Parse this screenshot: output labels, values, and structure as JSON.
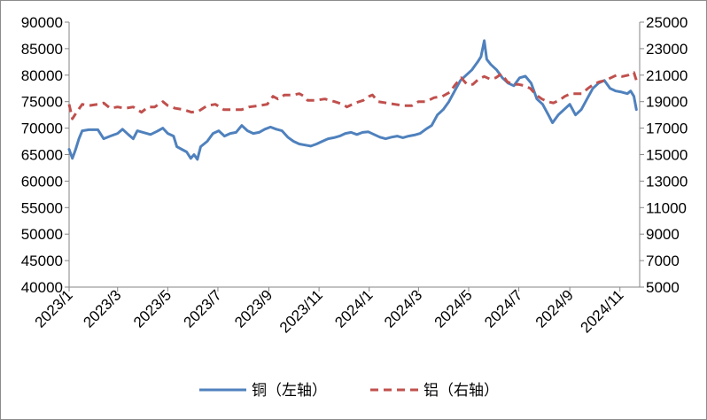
{
  "chart_data": {
    "type": "line",
    "y_left_lim": [
      40000,
      90000
    ],
    "y_left_ticks": [
      "90000",
      "85000",
      "80000",
      "75000",
      "70000",
      "65000",
      "60000",
      "55000",
      "50000",
      "45000",
      "40000"
    ],
    "y_right_lim": [
      5000,
      25000
    ],
    "y_right_ticks": [
      "25000",
      "23000",
      "21000",
      "19000",
      "17000",
      "15000",
      "13000",
      "11000",
      "9000",
      "7000",
      "5000"
    ],
    "x_ticks": [
      "2023/1",
      "2023/3",
      "2023/5",
      "2023/7",
      "2023/9",
      "2023/11",
      "2024/1",
      "2024/3",
      "2024/5",
      "2024/7",
      "2024/9",
      "2024/11"
    ],
    "x_lim": [
      "2023-01-01",
      "2024-11-25"
    ],
    "grid": "horizontal gridlines none",
    "legend_position": "bottom",
    "series": [
      {
        "name": "铜（左轴）",
        "axis": "left",
        "color": "#4f81bd",
        "style": "solid",
        "points": [
          [
            "2023-01-01",
            66000
          ],
          [
            "2023-01-05",
            64300
          ],
          [
            "2023-01-09",
            66000
          ],
          [
            "2023-01-13",
            68000
          ],
          [
            "2023-01-17",
            69500
          ],
          [
            "2023-01-25",
            69700
          ],
          [
            "2023-02-05",
            69700
          ],
          [
            "2023-02-12",
            68000
          ],
          [
            "2023-02-20",
            68500
          ],
          [
            "2023-03-01",
            69000
          ],
          [
            "2023-03-07",
            69800
          ],
          [
            "2023-03-14",
            68800
          ],
          [
            "2023-03-20",
            68000
          ],
          [
            "2023-03-25",
            69500
          ],
          [
            "2023-04-01",
            69200
          ],
          [
            "2023-04-10",
            68800
          ],
          [
            "2023-04-18",
            69400
          ],
          [
            "2023-04-25",
            70000
          ],
          [
            "2023-05-01",
            69000
          ],
          [
            "2023-05-08",
            68500
          ],
          [
            "2023-05-12",
            66500
          ],
          [
            "2023-05-18",
            66000
          ],
          [
            "2023-05-24",
            65500
          ],
          [
            "2023-05-29",
            64300
          ],
          [
            "2023-06-02",
            65000
          ],
          [
            "2023-06-06",
            64100
          ],
          [
            "2023-06-10",
            66500
          ],
          [
            "2023-06-18",
            67500
          ],
          [
            "2023-06-25",
            69000
          ],
          [
            "2023-07-02",
            69500
          ],
          [
            "2023-07-09",
            68500
          ],
          [
            "2023-07-16",
            69000
          ],
          [
            "2023-07-23",
            69200
          ],
          [
            "2023-07-30",
            70500
          ],
          [
            "2023-08-06",
            69500
          ],
          [
            "2023-08-13",
            69000
          ],
          [
            "2023-08-20",
            69200
          ],
          [
            "2023-08-27",
            69800
          ],
          [
            "2023-09-03",
            70200
          ],
          [
            "2023-09-10",
            69800
          ],
          [
            "2023-09-17",
            69500
          ],
          [
            "2023-09-24",
            68300
          ],
          [
            "2023-10-01",
            67500
          ],
          [
            "2023-10-08",
            67000
          ],
          [
            "2023-10-15",
            66800
          ],
          [
            "2023-10-22",
            66600
          ],
          [
            "2023-10-29",
            67000
          ],
          [
            "2023-11-05",
            67500
          ],
          [
            "2023-11-12",
            68000
          ],
          [
            "2023-11-19",
            68200
          ],
          [
            "2023-11-26",
            68500
          ],
          [
            "2023-12-03",
            69000
          ],
          [
            "2023-12-10",
            69200
          ],
          [
            "2023-12-17",
            68800
          ],
          [
            "2023-12-24",
            69200
          ],
          [
            "2023-12-31",
            69300
          ],
          [
            "2024-01-07",
            68800
          ],
          [
            "2024-01-14",
            68300
          ],
          [
            "2024-01-21",
            68000
          ],
          [
            "2024-01-28",
            68300
          ],
          [
            "2024-02-04",
            68500
          ],
          [
            "2024-02-11",
            68200
          ],
          [
            "2024-02-18",
            68500
          ],
          [
            "2024-02-25",
            68700
          ],
          [
            "2024-03-03",
            69000
          ],
          [
            "2024-03-10",
            69800
          ],
          [
            "2024-03-17",
            70500
          ],
          [
            "2024-03-24",
            72500
          ],
          [
            "2024-03-31",
            73500
          ],
          [
            "2024-04-07",
            75000
          ],
          [
            "2024-04-14",
            77000
          ],
          [
            "2024-04-21",
            79000
          ],
          [
            "2024-04-28",
            80000
          ],
          [
            "2024-05-05",
            81000
          ],
          [
            "2024-05-12",
            82500
          ],
          [
            "2024-05-16",
            83500
          ],
          [
            "2024-05-20",
            86500
          ],
          [
            "2024-05-23",
            83000
          ],
          [
            "2024-05-28",
            82000
          ],
          [
            "2024-06-04",
            81000
          ],
          [
            "2024-06-11",
            79500
          ],
          [
            "2024-06-18",
            78500
          ],
          [
            "2024-06-25",
            78000
          ],
          [
            "2024-07-02",
            79500
          ],
          [
            "2024-07-09",
            79800
          ],
          [
            "2024-07-16",
            78500
          ],
          [
            "2024-07-23",
            75500
          ],
          [
            "2024-07-30",
            74500
          ],
          [
            "2024-08-06",
            72500
          ],
          [
            "2024-08-11",
            71000
          ],
          [
            "2024-08-18",
            72500
          ],
          [
            "2024-08-25",
            73500
          ],
          [
            "2024-09-01",
            74500
          ],
          [
            "2024-09-08",
            72500
          ],
          [
            "2024-09-15",
            73500
          ],
          [
            "2024-09-22",
            75500
          ],
          [
            "2024-09-29",
            77500
          ],
          [
            "2024-10-06",
            78500
          ],
          [
            "2024-10-13",
            79000
          ],
          [
            "2024-10-20",
            77500
          ],
          [
            "2024-10-27",
            77000
          ],
          [
            "2024-11-03",
            76800
          ],
          [
            "2024-11-10",
            76500
          ],
          [
            "2024-11-14",
            77000
          ],
          [
            "2024-11-18",
            76000
          ],
          [
            "2024-11-21",
            73500
          ]
        ]
      },
      {
        "name": "铝（右轴）",
        "axis": "right",
        "color": "#c0504d",
        "style": "dashed",
        "points": [
          [
            "2023-01-01",
            18800
          ],
          [
            "2023-01-05",
            17700
          ],
          [
            "2023-01-10",
            18200
          ],
          [
            "2023-01-17",
            18800
          ],
          [
            "2023-01-25",
            18700
          ],
          [
            "2023-02-05",
            18800
          ],
          [
            "2023-02-12",
            18900
          ],
          [
            "2023-02-20",
            18500
          ],
          [
            "2023-03-01",
            18600
          ],
          [
            "2023-03-10",
            18500
          ],
          [
            "2023-03-20",
            18600
          ],
          [
            "2023-03-30",
            18200
          ],
          [
            "2023-04-07",
            18600
          ],
          [
            "2023-04-15",
            18600
          ],
          [
            "2023-04-25",
            19000
          ],
          [
            "2023-05-01",
            18700
          ],
          [
            "2023-05-10",
            18500
          ],
          [
            "2023-05-20",
            18400
          ],
          [
            "2023-05-30",
            18200
          ],
          [
            "2023-06-08",
            18300
          ],
          [
            "2023-06-18",
            18700
          ],
          [
            "2023-06-28",
            18800
          ],
          [
            "2023-07-08",
            18400
          ],
          [
            "2023-07-20",
            18400
          ],
          [
            "2023-07-30",
            18400
          ],
          [
            "2023-08-08",
            18600
          ],
          [
            "2023-08-20",
            18700
          ],
          [
            "2023-08-30",
            18800
          ],
          [
            "2023-09-06",
            19400
          ],
          [
            "2023-09-12",
            19200
          ],
          [
            "2023-09-20",
            19500
          ],
          [
            "2023-09-30",
            19500
          ],
          [
            "2023-10-08",
            19600
          ],
          [
            "2023-10-14",
            19400
          ],
          [
            "2023-10-18",
            19100
          ],
          [
            "2023-10-28",
            19100
          ],
          [
            "2023-11-08",
            19200
          ],
          [
            "2023-11-20",
            19000
          ],
          [
            "2023-11-30",
            18800
          ],
          [
            "2023-12-05",
            18600
          ],
          [
            "2023-12-15",
            18900
          ],
          [
            "2023-12-25",
            19100
          ],
          [
            "2024-01-01",
            19400
          ],
          [
            "2024-01-05",
            19500
          ],
          [
            "2024-01-12",
            19000
          ],
          [
            "2024-01-22",
            18900
          ],
          [
            "2024-02-01",
            18800
          ],
          [
            "2024-02-12",
            18700
          ],
          [
            "2024-02-22",
            18700
          ],
          [
            "2024-03-01",
            19000
          ],
          [
            "2024-03-10",
            19000
          ],
          [
            "2024-03-20",
            19300
          ],
          [
            "2024-03-30",
            19400
          ],
          [
            "2024-04-08",
            19700
          ],
          [
            "2024-04-15",
            20300
          ],
          [
            "2024-04-22",
            20800
          ],
          [
            "2024-04-29",
            20300
          ],
          [
            "2024-05-06",
            20300
          ],
          [
            "2024-05-13",
            20700
          ],
          [
            "2024-05-20",
            20900
          ],
          [
            "2024-05-27",
            20700
          ],
          [
            "2024-06-03",
            20800
          ],
          [
            "2024-06-10",
            21100
          ],
          [
            "2024-06-17",
            20500
          ],
          [
            "2024-06-24",
            20300
          ],
          [
            "2024-07-01",
            20300
          ],
          [
            "2024-07-08",
            20200
          ],
          [
            "2024-07-15",
            20000
          ],
          [
            "2024-07-22",
            19500
          ],
          [
            "2024-07-29",
            19200
          ],
          [
            "2024-08-05",
            19000
          ],
          [
            "2024-08-12",
            18900
          ],
          [
            "2024-08-19",
            19100
          ],
          [
            "2024-08-26",
            19400
          ],
          [
            "2024-09-02",
            19600
          ],
          [
            "2024-09-09",
            19600
          ],
          [
            "2024-09-16",
            19600
          ],
          [
            "2024-09-23",
            20000
          ],
          [
            "2024-09-30",
            20300
          ],
          [
            "2024-10-07",
            20500
          ],
          [
            "2024-10-14",
            20600
          ],
          [
            "2024-10-21",
            20800
          ],
          [
            "2024-10-28",
            21000
          ],
          [
            "2024-11-04",
            20900
          ],
          [
            "2024-11-11",
            21000
          ],
          [
            "2024-11-18",
            21200
          ],
          [
            "2024-11-21",
            20600
          ]
        ]
      }
    ]
  }
}
